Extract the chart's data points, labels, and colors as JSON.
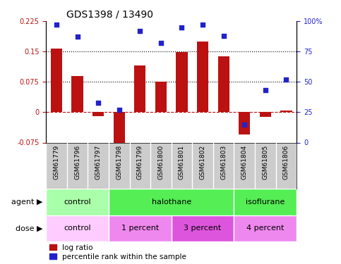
{
  "title": "GDS1398 / 13490",
  "samples": [
    "GSM61779",
    "GSM61796",
    "GSM61797",
    "GSM61798",
    "GSM61799",
    "GSM61800",
    "GSM61801",
    "GSM61802",
    "GSM61803",
    "GSM61804",
    "GSM61805",
    "GSM61806"
  ],
  "log_ratio": [
    0.158,
    0.09,
    -0.01,
    -0.095,
    0.115,
    0.075,
    0.148,
    0.175,
    0.138,
    -0.055,
    -0.012,
    0.005
  ],
  "percentile_rank": [
    97,
    87,
    33,
    27,
    92,
    82,
    95,
    97,
    88,
    15,
    43,
    52
  ],
  "bar_color": "#BB1111",
  "scatter_color": "#2222CC",
  "ylim_left": [
    -0.075,
    0.225
  ],
  "ylim_right": [
    0,
    100
  ],
  "yticks_left": [
    -0.075,
    0,
    0.075,
    0.15,
    0.225
  ],
  "yticks_right": [
    0,
    25,
    50,
    75,
    100
  ],
  "ytick_labels_right": [
    "0",
    "25",
    "50",
    "75",
    "100%"
  ],
  "hlines": [
    0.075,
    0.15
  ],
  "zero_line": 0.0,
  "agent_groups": [
    {
      "label": "control",
      "start": 0,
      "end": 3,
      "color": "#AAFFAA"
    },
    {
      "label": "halothane",
      "start": 3,
      "end": 9,
      "color": "#55EE55"
    },
    {
      "label": "isoflurane",
      "start": 9,
      "end": 12,
      "color": "#55EE55"
    }
  ],
  "dose_groups": [
    {
      "label": "control",
      "start": 0,
      "end": 3,
      "color": "#FFCCFF"
    },
    {
      "label": "1 percent",
      "start": 3,
      "end": 6,
      "color": "#EE88EE"
    },
    {
      "label": "3 percent",
      "start": 6,
      "end": 9,
      "color": "#DD55DD"
    },
    {
      "label": "4 percent",
      "start": 9,
      "end": 12,
      "color": "#EE88EE"
    }
  ],
  "sample_bg": "#CCCCCC",
  "legend_log_ratio": "log ratio",
  "legend_percentile": "percentile rank within the sample",
  "xlabel_agent": "agent",
  "xlabel_dose": "dose",
  "background_color": "#FFFFFF",
  "bar_width": 0.55
}
